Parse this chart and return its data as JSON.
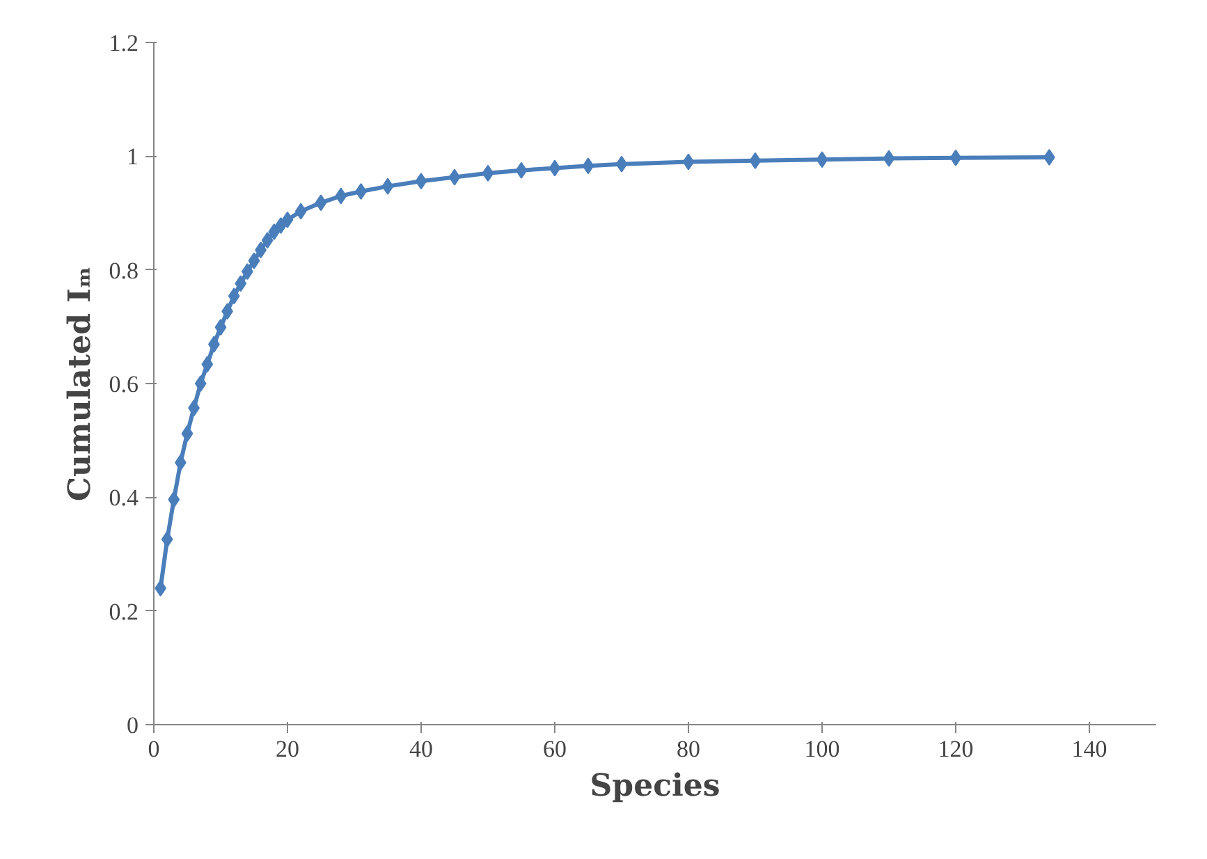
{
  "chart_data": {
    "type": "line",
    "xlabel": "Species",
    "ylabel": "Cumulated Iₘ",
    "marker": "diamond",
    "grid": false,
    "xlim": [
      0,
      150
    ],
    "xticks": [
      0,
      20,
      40,
      60,
      80,
      100,
      120,
      140
    ],
    "ylim": [
      0,
      1.2
    ],
    "yticks": [
      0,
      0.2,
      0.4,
      0.6,
      0.8,
      1,
      1.2
    ],
    "x": [
      1,
      2,
      3,
      4,
      5,
      6,
      7,
      8,
      9,
      10,
      11,
      12,
      13,
      14,
      15,
      16,
      17,
      18,
      19,
      20,
      22,
      25,
      28,
      31,
      35,
      40,
      45,
      50,
      55,
      60,
      65,
      70,
      80,
      90,
      100,
      110,
      120,
      134
    ],
    "series": [
      {
        "color": "#4a7ebb",
        "values": [
          0.24,
          0.326,
          0.396,
          0.461,
          0.512,
          0.557,
          0.6,
          0.634,
          0.669,
          0.699,
          0.727,
          0.754,
          0.776,
          0.797,
          0.816,
          0.835,
          0.852,
          0.867,
          0.878,
          0.888,
          0.903,
          0.918,
          0.93,
          0.938,
          0.947,
          0.956,
          0.963,
          0.97,
          0.975,
          0.979,
          0.983,
          0.986,
          0.99,
          0.992,
          0.994,
          0.996,
          0.997,
          0.998
        ]
      }
    ]
  }
}
